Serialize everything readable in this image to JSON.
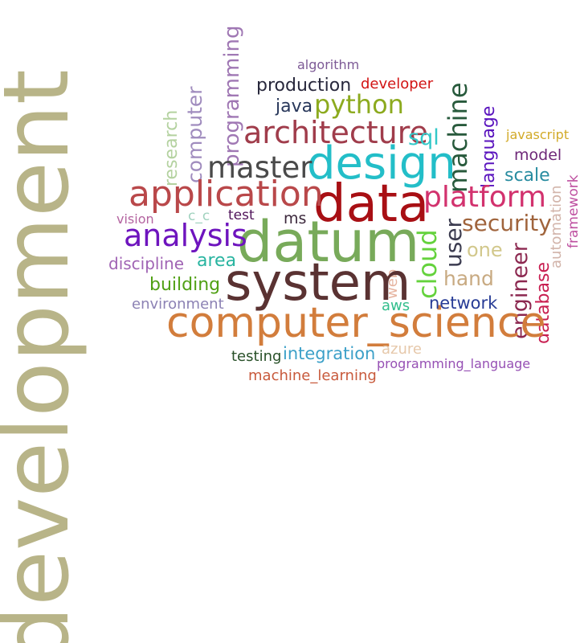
{
  "words": [
    {
      "text": "development",
      "color": "#b8b488"
    },
    {
      "text": "datum",
      "color": "#78aa5a"
    },
    {
      "text": "system",
      "color": "#5a3232"
    },
    {
      "text": "data",
      "color": "#a80f14"
    },
    {
      "text": "computer_science",
      "color": "#d27d3c"
    },
    {
      "text": "design",
      "color": "#23bec8"
    },
    {
      "text": "application",
      "color": "#b9484a"
    },
    {
      "text": "architecture",
      "color": "#a03c4b"
    },
    {
      "text": "master",
      "color": "#4a4a4a"
    },
    {
      "text": "analysis",
      "color": "#6e14be"
    },
    {
      "text": "platform",
      "color": "#d2326e"
    },
    {
      "text": "machine",
      "color": "#285a3c"
    },
    {
      "text": "python",
      "color": "#8caa1e"
    },
    {
      "text": "cloud",
      "color": "#64d23c"
    },
    {
      "text": "security",
      "color": "#a0643c"
    },
    {
      "text": "user",
      "color": "#3c3c50"
    },
    {
      "text": "programming",
      "color": "#a078b4"
    },
    {
      "text": "computer",
      "color": "#a08cbe"
    },
    {
      "text": "research",
      "color": "#b4d2a0"
    },
    {
      "text": "engineer",
      "color": "#8c2850"
    },
    {
      "text": "hand",
      "color": "#c8aa82"
    },
    {
      "text": "sql",
      "color": "#32c8c8"
    },
    {
      "text": "database",
      "color": "#c81e50"
    },
    {
      "text": "production",
      "color": "#28283c"
    },
    {
      "text": "java",
      "color": "#28375a"
    },
    {
      "text": "developer",
      "color": "#d21414"
    },
    {
      "text": "algorithm",
      "color": "#7d5a96"
    },
    {
      "text": "language",
      "color": "#5a14be"
    },
    {
      "text": "javascript",
      "color": "#d2aa28"
    },
    {
      "text": "model",
      "color": "#6e2878"
    },
    {
      "text": "scale",
      "color": "#288ca0"
    },
    {
      "text": "automation",
      "color": "#d2b4aa"
    },
    {
      "text": "framework",
      "color": "#be50a0"
    },
    {
      "text": "vision",
      "color": "#b464a0"
    },
    {
      "text": "c_c",
      "color": "#a0d2be"
    },
    {
      "text": "test",
      "color": "#50145a"
    },
    {
      "text": "ms",
      "color": "#3c283c"
    },
    {
      "text": "one",
      "color": "#d2c88c"
    },
    {
      "text": "discipline",
      "color": "#a064b4"
    },
    {
      "text": "area",
      "color": "#28b4a0"
    },
    {
      "text": "building",
      "color": "#50a014"
    },
    {
      "text": "environment",
      "color": "#8c82b4"
    },
    {
      "text": "web",
      "color": "#e6b4a0"
    },
    {
      "text": "aws",
      "color": "#32be8c"
    },
    {
      "text": "network",
      "color": "#283c96"
    },
    {
      "text": "integration",
      "color": "#3ca0c8"
    },
    {
      "text": "azure",
      "color": "#e6c8aa"
    },
    {
      "text": "testing",
      "color": "#285028"
    },
    {
      "text": "programming_language",
      "color": "#9650b4"
    },
    {
      "text": "machine_learning",
      "color": "#c85a3c"
    }
  ]
}
